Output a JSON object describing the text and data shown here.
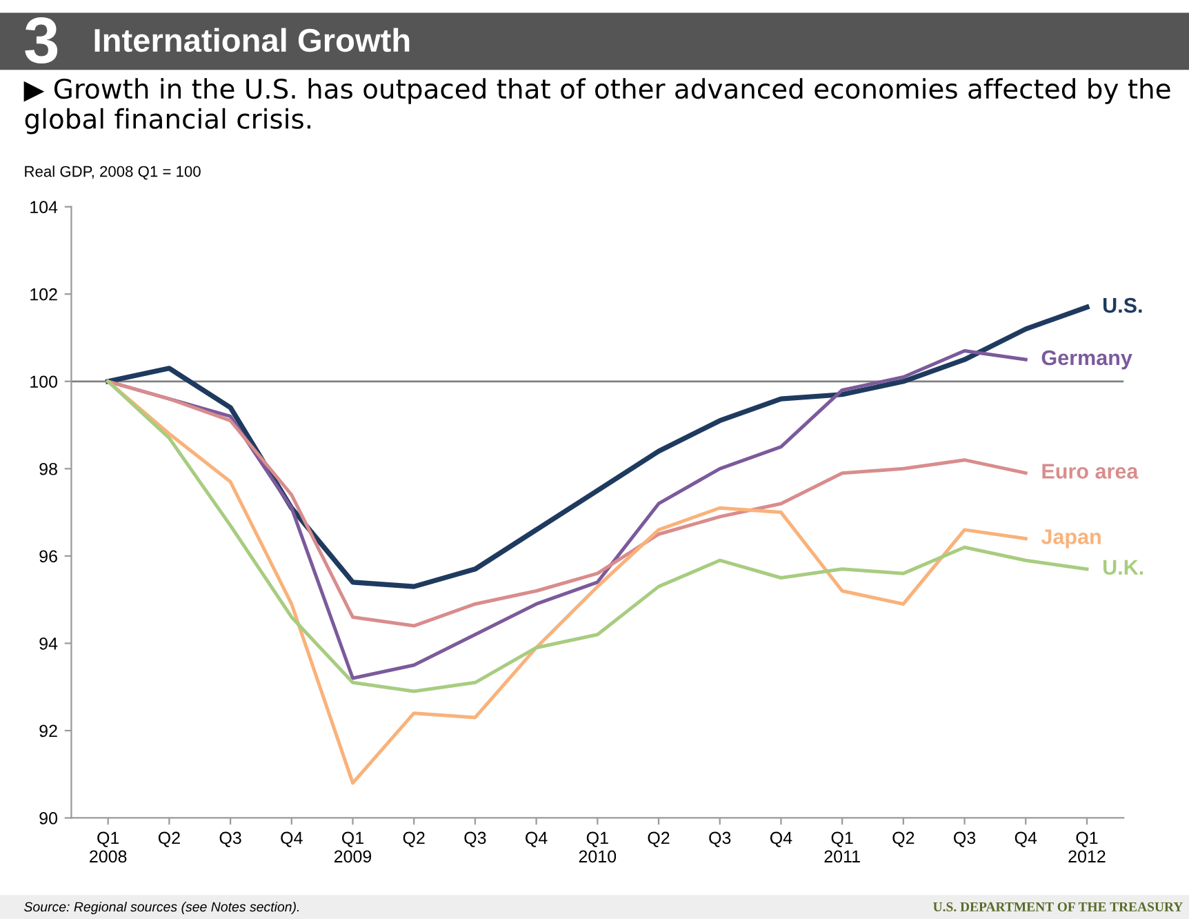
{
  "chart_data": {
    "type": "line",
    "title": "International Growth",
    "subtitle": "▶ Growth in the U.S. has outpaced that of other advanced economies affected by the global financial crisis.",
    "ylabel": "Real GDP, 2008 Q1 = 100",
    "categories": [
      "Q1\n2008",
      "Q2",
      "Q3",
      "Q4",
      "Q1\n2009",
      "Q2",
      "Q3",
      "Q4",
      "Q1\n2010",
      "Q2",
      "Q3",
      "Q4",
      "Q1\n2011",
      "Q2",
      "Q3",
      "Q4",
      "Q1\n2012"
    ],
    "series": [
      {
        "name": "U.S.",
        "color": "#1f3a5f",
        "values": [
          100,
          100.3,
          99.4,
          97.1,
          95.4,
          95.3,
          95.7,
          96.6,
          97.5,
          98.4,
          99.1,
          99.6,
          99.7,
          100.0,
          100.5,
          101.2,
          101.7
        ]
      },
      {
        "name": "Germany",
        "color": "#7b5a9b",
        "values": [
          100,
          99.6,
          99.2,
          97.1,
          93.2,
          93.5,
          94.2,
          94.9,
          95.4,
          97.2,
          98.0,
          98.5,
          99.8,
          100.1,
          100.7,
          100.5,
          null
        ]
      },
      {
        "name": "Euro area",
        "color": "#d98c8c",
        "values": [
          100,
          99.6,
          99.1,
          97.4,
          94.6,
          94.4,
          94.9,
          95.2,
          95.6,
          96.5,
          96.9,
          97.2,
          97.9,
          98.0,
          98.2,
          97.9,
          null
        ]
      },
      {
        "name": "Japan",
        "color": "#f9b27a",
        "values": [
          100,
          98.8,
          97.7,
          94.9,
          90.8,
          92.4,
          92.3,
          93.9,
          95.3,
          96.6,
          97.1,
          97.0,
          95.2,
          94.9,
          96.6,
          96.4,
          null
        ]
      },
      {
        "name": "U.K.",
        "color": "#a8cc80",
        "values": [
          100,
          98.7,
          96.7,
          94.6,
          93.1,
          92.9,
          93.1,
          93.9,
          94.2,
          95.3,
          95.9,
          95.5,
          95.7,
          95.6,
          96.2,
          95.9,
          95.7
        ]
      }
    ],
    "ylim": [
      90,
      104
    ],
    "yticks": [
      90,
      92,
      94,
      96,
      98,
      100,
      102,
      104
    ],
    "ref_lines": [
      {
        "axis": "y",
        "value": 100,
        "color": "#808080"
      }
    ],
    "grid": false,
    "legend": false,
    "annotations": [
      "3",
      "Source: Regional sources (see Notes section).",
      "U.S. DEPARTMENT OF THE TREASURY"
    ]
  }
}
